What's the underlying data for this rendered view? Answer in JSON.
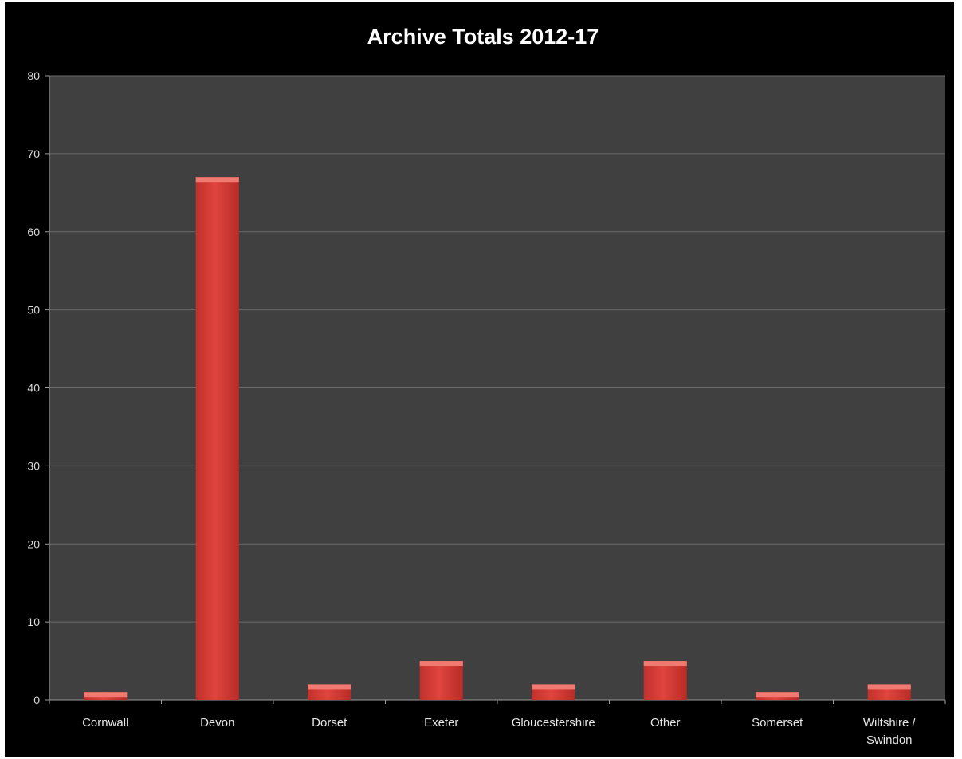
{
  "chart_data": {
    "type": "bar",
    "title": "Archive Totals 2012-17",
    "xlabel": "",
    "ylabel": "",
    "categories": [
      "Cornwall",
      "Devon",
      "Dorset",
      "Exeter",
      "Gloucestershire",
      "Other",
      "Somerset",
      "Wiltshire / Swindon"
    ],
    "category_lines": [
      [
        "Cornwall"
      ],
      [
        "Devon"
      ],
      [
        "Dorset"
      ],
      [
        "Exeter"
      ],
      [
        "Gloucestershire"
      ],
      [
        "Other"
      ],
      [
        "Somerset"
      ],
      [
        "Wiltshire /",
        "Swindon"
      ]
    ],
    "values": [
      1,
      67,
      2,
      5,
      2,
      5,
      1,
      2
    ],
    "ylim": [
      0,
      80
    ],
    "yticks": [
      0,
      10,
      20,
      30,
      40,
      50,
      60,
      70,
      80
    ],
    "grid": true,
    "legend": "none",
    "colors": {
      "background": "#000000",
      "plot_area": "#404040",
      "gridline": "#6a6a6a",
      "bar": "#d63a35",
      "bar_top": "#f07a72",
      "text": "#ffffff"
    }
  }
}
